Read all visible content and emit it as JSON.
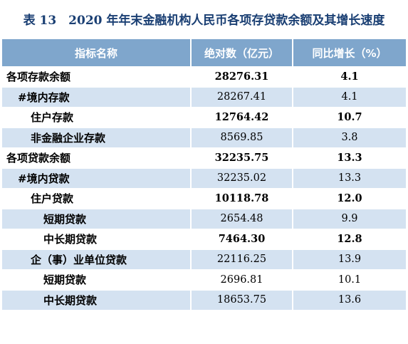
{
  "title": "表 13　2020 年年末金融机构人民币各项存贷款余额及其增长速度",
  "table": {
    "headers": [
      "指标名称",
      "绝对数（亿元）",
      "同比增长（%）"
    ],
    "rows": [
      {
        "name": "各项存款余额",
        "value": "28276.31",
        "growth": "4.1"
      },
      {
        "name": "#境内存款",
        "value": "28267.41",
        "growth": "4.1"
      },
      {
        "name": "住户存款",
        "value": "12764.42",
        "growth": "10.7"
      },
      {
        "name": "非金融企业存款",
        "value": "8569.85",
        "growth": "3.8"
      },
      {
        "name": "各项贷款余额",
        "value": "32235.75",
        "growth": "13.3"
      },
      {
        "name": "#境内贷款",
        "value": "32235.02",
        "growth": "13.3"
      },
      {
        "name": "住户贷款",
        "value": "10118.78",
        "growth": "12.0"
      },
      {
        "name": "短期贷款",
        "value": "2654.48",
        "growth": "9.9"
      },
      {
        "name": "中长期贷款",
        "value": "7464.30",
        "growth": "12.8"
      },
      {
        "name": "企（事）业单位贷款",
        "value": "22116.25",
        "growth": "13.9"
      },
      {
        "name": "短期贷款",
        "value": "2696.81",
        "growth": "10.1"
      },
      {
        "name": "中长期贷款",
        "value": "18653.75",
        "growth": "13.6"
      }
    ]
  }
}
